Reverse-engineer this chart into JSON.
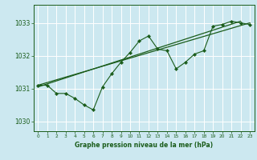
{
  "title": "Graphe pression niveau de la mer (hPa)",
  "background_color": "#cce8f0",
  "grid_color": "#ffffff",
  "line_color": "#1a5c1a",
  "xlim": [
    -0.5,
    23.5
  ],
  "ylim": [
    1029.7,
    1033.55
  ],
  "yticks": [
    1030,
    1031,
    1032,
    1033
  ],
  "xticks": [
    0,
    1,
    2,
    3,
    4,
    5,
    6,
    7,
    8,
    9,
    10,
    11,
    12,
    13,
    14,
    15,
    16,
    17,
    18,
    19,
    20,
    21,
    22,
    23
  ],
  "data_x": [
    0,
    1,
    2,
    3,
    4,
    5,
    6,
    7,
    8,
    9,
    10,
    11,
    12,
    13,
    14,
    15,
    16,
    17,
    18,
    19,
    20,
    21,
    22,
    23
  ],
  "data_y": [
    1031.1,
    1031.1,
    1030.85,
    1030.85,
    1030.7,
    1030.5,
    1030.35,
    1031.05,
    1031.45,
    1031.8,
    1032.1,
    1032.45,
    1032.6,
    1032.2,
    1032.15,
    1031.6,
    1031.8,
    1032.05,
    1032.15,
    1032.9,
    1032.95,
    1033.05,
    1033.0,
    1032.95
  ],
  "trend1_x": [
    0,
    23
  ],
  "trend1_y": [
    1031.1,
    1033.0
  ],
  "trend2_x": [
    0,
    22
  ],
  "trend2_y": [
    1031.05,
    1033.05
  ]
}
